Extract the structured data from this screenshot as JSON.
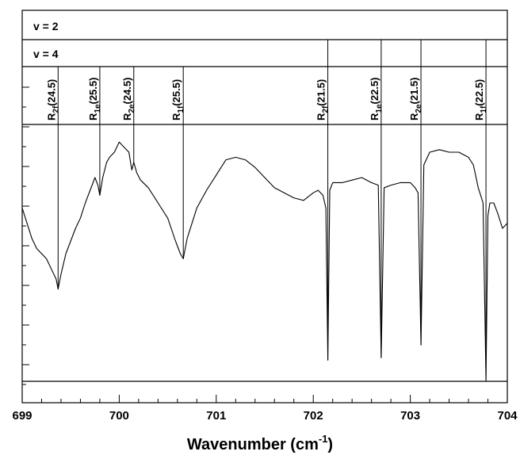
{
  "chart_data": {
    "type": "line",
    "title": "",
    "xlabel_main": "Wavenumber (cm",
    "xlabel_sup": "-1",
    "xlabel_end": ")",
    "ylabel": "",
    "xlim": [
      699,
      704
    ],
    "ylim": [
      0,
      1
    ],
    "x_ticks": [
      {
        "value": 699,
        "label": "699"
      },
      {
        "value": 700,
        "label": "700"
      },
      {
        "value": 701,
        "label": "701"
      },
      {
        "value": 702,
        "label": "702"
      },
      {
        "value": 703,
        "label": "703"
      },
      {
        "value": 704,
        "label": "704"
      }
    ],
    "band_labels": [
      {
        "text": "v = 2"
      },
      {
        "text": "v = 4"
      }
    ],
    "lines": [
      {
        "x": 699.37,
        "main": "R",
        "sub": "2f",
        "rest": "(24.5)"
      },
      {
        "x": 699.8,
        "main": "R",
        "sub": "1e",
        "rest": "(25.5)"
      },
      {
        "x": 700.15,
        "main": "R",
        "sub": "2e",
        "rest": "(24.5)"
      },
      {
        "x": 700.66,
        "main": "R",
        "sub": "1f",
        "rest": "(25.5)"
      },
      {
        "x": 702.15,
        "main": "R",
        "sub": "2f",
        "rest": "(21.5)"
      },
      {
        "x": 702.7,
        "main": "R",
        "sub": "1e",
        "rest": "(22.5)"
      },
      {
        "x": 703.11,
        "main": "R",
        "sub": "2e",
        "rest": "(21.5)"
      },
      {
        "x": 703.78,
        "main": "R",
        "sub": "1f",
        "rest": "(22.5)"
      }
    ],
    "series": [
      {
        "x": [
          699.0,
          699.05,
          699.1,
          699.15,
          699.2,
          699.25,
          699.3,
          699.35,
          699.37,
          699.4,
          699.45,
          699.5,
          699.55,
          699.6,
          699.65,
          699.7,
          699.75,
          699.78,
          699.8,
          699.83,
          699.87,
          699.9,
          699.95,
          700.0,
          700.05,
          700.1,
          700.13,
          700.15,
          700.18,
          700.22,
          700.3,
          700.4,
          700.5,
          700.58,
          700.63,
          700.66,
          700.7,
          700.75,
          700.8,
          700.9,
          701.0,
          701.1,
          701.2,
          701.3,
          701.4,
          701.5,
          701.6,
          701.7,
          701.8,
          701.9,
          702.0,
          702.05,
          702.1,
          702.13,
          702.15,
          702.17,
          702.2,
          702.3,
          702.4,
          702.5,
          702.6,
          702.67,
          702.7,
          702.73,
          702.8,
          702.9,
          703.0,
          703.05,
          703.08,
          703.11,
          703.14,
          703.2,
          703.3,
          703.4,
          703.5,
          703.6,
          703.65,
          703.7,
          703.75,
          703.78,
          703.8,
          703.82,
          703.86,
          703.9,
          703.95,
          704.0
        ],
        "y": [
          0.68,
          0.62,
          0.56,
          0.52,
          0.5,
          0.48,
          0.44,
          0.4,
          0.36,
          0.42,
          0.5,
          0.55,
          0.6,
          0.64,
          0.7,
          0.75,
          0.8,
          0.77,
          0.73,
          0.8,
          0.86,
          0.88,
          0.9,
          0.94,
          0.92,
          0.9,
          0.83,
          0.86,
          0.82,
          0.79,
          0.76,
          0.7,
          0.64,
          0.55,
          0.5,
          0.48,
          0.56,
          0.62,
          0.68,
          0.75,
          0.81,
          0.87,
          0.88,
          0.87,
          0.84,
          0.8,
          0.76,
          0.74,
          0.72,
          0.71,
          0.74,
          0.75,
          0.73,
          0.68,
          0.08,
          0.75,
          0.78,
          0.78,
          0.79,
          0.8,
          0.78,
          0.77,
          0.09,
          0.76,
          0.77,
          0.78,
          0.78,
          0.76,
          0.74,
          0.14,
          0.85,
          0.9,
          0.91,
          0.9,
          0.9,
          0.88,
          0.85,
          0.76,
          0.7,
          0.0,
          0.65,
          0.7,
          0.7,
          0.66,
          0.6,
          0.62
        ]
      }
    ],
    "grid": false,
    "legend": "none"
  }
}
